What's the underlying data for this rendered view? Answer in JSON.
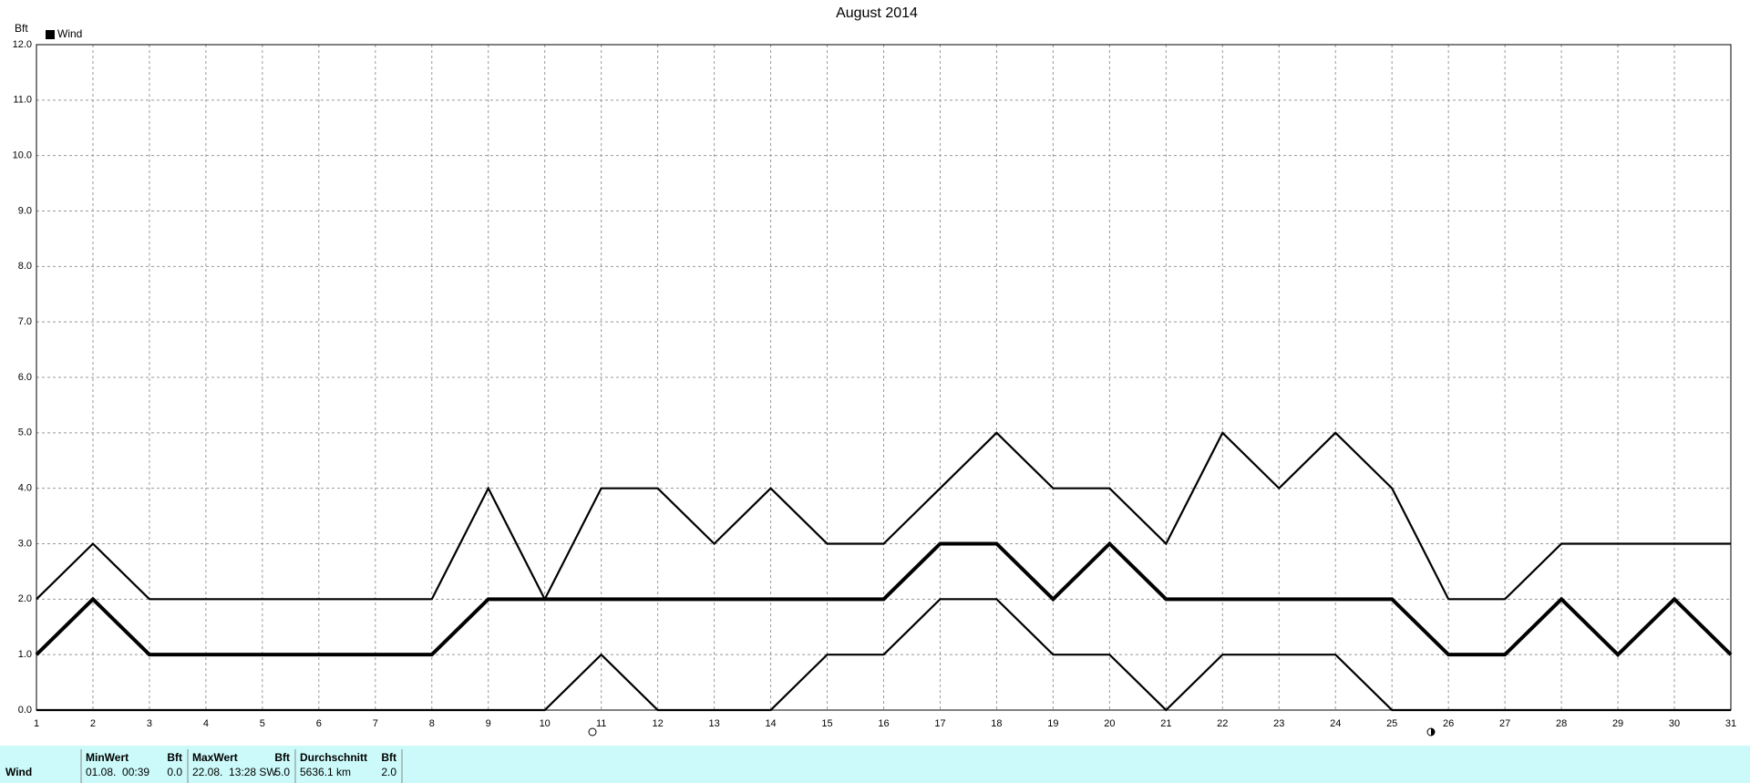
{
  "chart_data": {
    "type": "line",
    "title": "August 2014",
    "y_label": "Bft",
    "legend": [
      "Wind"
    ],
    "x": [
      1,
      2,
      3,
      4,
      5,
      6,
      7,
      8,
      9,
      10,
      11,
      12,
      13,
      14,
      15,
      16,
      17,
      18,
      19,
      20,
      21,
      22,
      23,
      24,
      25,
      26,
      27,
      28,
      29,
      30,
      31
    ],
    "xlim": [
      1,
      31
    ],
    "xticks": [
      1,
      2,
      3,
      4,
      5,
      6,
      7,
      8,
      9,
      10,
      11,
      12,
      13,
      14,
      15,
      16,
      17,
      18,
      19,
      20,
      21,
      22,
      23,
      24,
      25,
      26,
      27,
      28,
      29,
      30,
      31
    ],
    "ylim": [
      0,
      12
    ],
    "yticks": [
      {
        "value": 0,
        "label": "0.0"
      },
      {
        "value": 1,
        "label": "1.0"
      },
      {
        "value": 2,
        "label": "2.0"
      },
      {
        "value": 3,
        "label": "3.0"
      },
      {
        "value": 4,
        "label": "4.0"
      },
      {
        "value": 5,
        "label": "5.0"
      },
      {
        "value": 6,
        "label": "6.0"
      },
      {
        "value": 7,
        "label": "7.0"
      },
      {
        "value": 8,
        "label": "8.0"
      },
      {
        "value": 9,
        "label": "9.0"
      },
      {
        "value": 10,
        "label": "10.0"
      },
      {
        "value": 11,
        "label": "11.0"
      },
      {
        "value": 12,
        "label": "12.0"
      }
    ],
    "grid": true,
    "series": [
      {
        "color": "#000000",
        "values": [
          2,
          3,
          2,
          2,
          2,
          2,
          2,
          2,
          4,
          2,
          4,
          4,
          3,
          4,
          3,
          3,
          4,
          5,
          4,
          4,
          3,
          5,
          4,
          5,
          4,
          2,
          2,
          3,
          3,
          3,
          3
        ]
      },
      {
        "color": "#000000",
        "values": [
          1,
          2,
          1,
          1,
          1,
          1,
          1,
          1,
          2,
          2,
          2,
          2,
          2,
          2,
          2,
          2,
          3,
          3,
          2,
          3,
          2,
          2,
          2,
          2,
          2,
          1,
          1,
          2,
          1,
          2,
          1
        ]
      },
      {
        "color": "#000000",
        "values": [
          0,
          0,
          0,
          0,
          0,
          0,
          0,
          0,
          0,
          0,
          1,
          0,
          0,
          0,
          1,
          1,
          2,
          2,
          1,
          1,
          0,
          1,
          1,
          1,
          0,
          0,
          0,
          0,
          0,
          0,
          0
        ]
      }
    ]
  },
  "table": {
    "row_label": "Wind",
    "columns": [
      {
        "header": "MinWert",
        "unit": "Bft",
        "when": "01.08.  00:39",
        "value": "0.0"
      },
      {
        "header": "MaxWert",
        "unit": "Bft",
        "when": "22.08.  13:28 SW",
        "value": "5.0"
      },
      {
        "header": "Durchschnitt",
        "unit": "Bft",
        "when": "5636.1 km",
        "value": "2.0"
      }
    ]
  }
}
